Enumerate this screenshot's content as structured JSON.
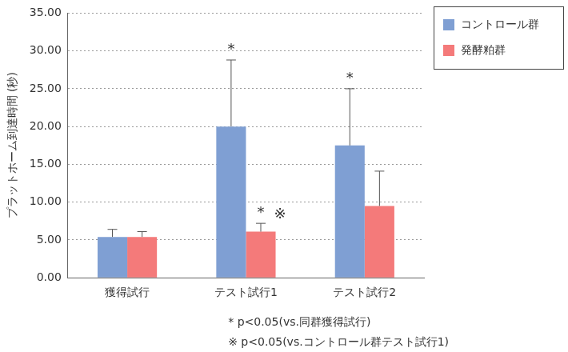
{
  "chart_data": {
    "type": "bar",
    "categories": [
      "獲得試行",
      "テスト試行1",
      "テスト試行2"
    ],
    "y_label": "プラットホーム到達時間 (秒)",
    "series": [
      {
        "name": "コントロール群",
        "color": "#7f9fd3",
        "values": [
          5.4,
          20.0,
          17.5
        ],
        "errors": [
          1.0,
          8.8,
          7.5
        ]
      },
      {
        "name": "発酵粕群",
        "color": "#f47a7a",
        "values": [
          5.4,
          6.1,
          9.5
        ],
        "errors": [
          0.7,
          1.1,
          4.6
        ]
      }
    ],
    "ylim": [
      0,
      35
    ],
    "yticks": [
      {
        "value": 0,
        "label": "0.00"
      },
      {
        "value": 5,
        "label": "5.00"
      },
      {
        "value": 10,
        "label": "10.00"
      },
      {
        "value": 15,
        "label": "15.00"
      },
      {
        "value": 20,
        "label": "20.00"
      },
      {
        "value": 25,
        "label": "25.00"
      },
      {
        "value": 30,
        "label": "30.00"
      },
      {
        "value": 35,
        "label": "35.00"
      }
    ],
    "grid": true,
    "legend": "top right",
    "annotations": [
      {
        "text": "*",
        "category": "テスト試行1",
        "series": "コントロール群"
      },
      {
        "text": "*",
        "category": "テスト試行2",
        "series": "コントロール群"
      },
      {
        "text": "*",
        "category": "テスト試行1",
        "series": "発酵粕群"
      },
      {
        "text": "※",
        "category": "テスト試行1",
        "series": "発酵粕群"
      }
    ],
    "notes": [
      "* p<0.05(vs.同群獲得試行)",
      "※ p<0.05(vs.コントロール群テスト試行1)"
    ]
  }
}
